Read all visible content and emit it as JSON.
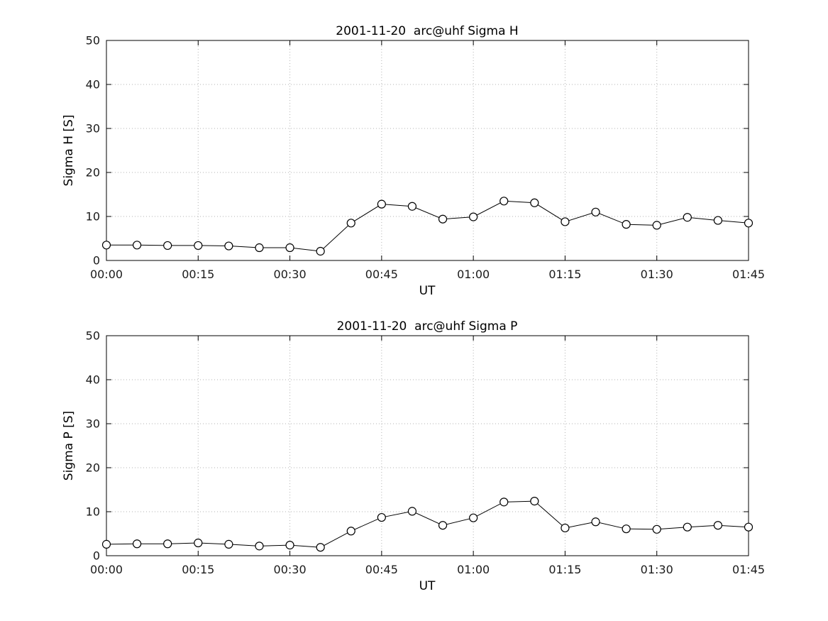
{
  "figure": {
    "background": "#ffffff"
  },
  "style": {
    "grid_color": "#b3b3b3",
    "axis_color": "#000000",
    "tick_label_color": "#1a1a1a",
    "marker_fill": "#ffffff"
  },
  "chart_data": [
    {
      "type": "line",
      "title": "2001-11-20  arc@uhf Sigma H",
      "xlabel": "UT",
      "ylabel": "Sigma H [S]",
      "x_unit": "minutes since 00:00 UT",
      "xlim": [
        0,
        105
      ],
      "ylim": [
        0,
        50
      ],
      "y_ticks": [
        0,
        10,
        20,
        30,
        40,
        50
      ],
      "x_ticks": [
        0,
        15,
        30,
        45,
        60,
        75,
        90,
        105
      ],
      "x_tick_labels": [
        "00:00",
        "00:15",
        "00:30",
        "00:45",
        "01:00",
        "01:15",
        "01:30",
        "01:45"
      ],
      "x": [
        0,
        5,
        10,
        15,
        20,
        25,
        30,
        35,
        40,
        45,
        50,
        55,
        60,
        65,
        70,
        75,
        80,
        85,
        90,
        95,
        100,
        105
      ],
      "values": [
        3.5,
        3.5,
        3.4,
        3.4,
        3.3,
        2.9,
        2.9,
        2.1,
        8.5,
        12.8,
        12.3,
        9.4,
        9.9,
        13.5,
        13.1,
        8.8,
        11.0,
        8.2,
        8.0,
        9.8,
        9.1,
        8.5
      ],
      "marker": "open-circle",
      "line_color": "#000000",
      "grid": true,
      "legend": "none"
    },
    {
      "type": "line",
      "title": "2001-11-20  arc@uhf Sigma P",
      "xlabel": "UT",
      "ylabel": "Sigma P [S]",
      "x_unit": "minutes since 00:00 UT",
      "xlim": [
        0,
        105
      ],
      "ylim": [
        0,
        50
      ],
      "y_ticks": [
        0,
        10,
        20,
        30,
        40,
        50
      ],
      "x_ticks": [
        0,
        15,
        30,
        45,
        60,
        75,
        90,
        105
      ],
      "x_tick_labels": [
        "00:00",
        "00:15",
        "00:30",
        "00:45",
        "01:00",
        "01:15",
        "01:30",
        "01:45"
      ],
      "x": [
        0,
        5,
        10,
        15,
        20,
        25,
        30,
        35,
        40,
        45,
        50,
        55,
        60,
        65,
        70,
        75,
        80,
        85,
        90,
        95,
        100,
        105
      ],
      "values": [
        2.6,
        2.7,
        2.7,
        2.9,
        2.6,
        2.2,
        2.4,
        1.9,
        5.6,
        8.7,
        10.1,
        6.9,
        8.6,
        12.2,
        12.4,
        6.3,
        7.7,
        6.1,
        6.0,
        6.5,
        6.9,
        6.5
      ],
      "marker": "open-circle",
      "line_color": "#000000",
      "grid": true,
      "legend": "none"
    }
  ]
}
